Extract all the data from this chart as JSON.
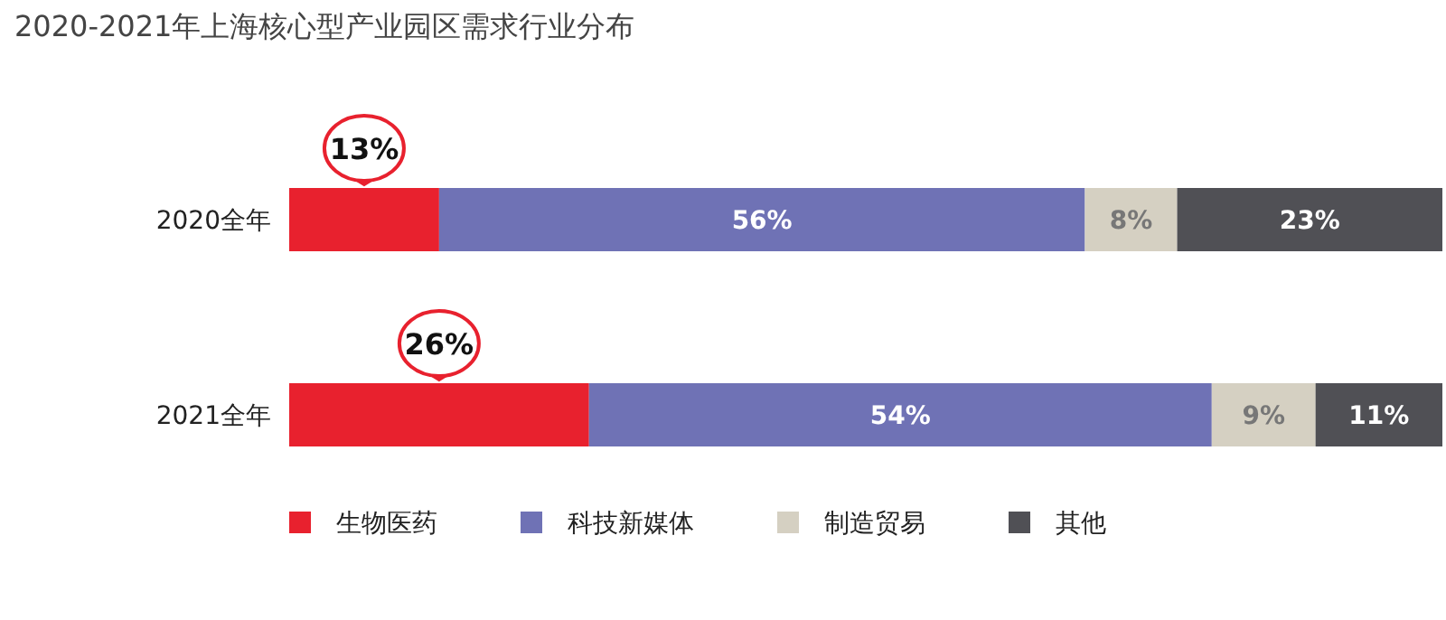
{
  "chart_data": {
    "type": "bar",
    "title": "2020-2021年上海核心型产业园区需求行业分布",
    "orientation": "horizontal",
    "stacked": true,
    "legend": "bottom",
    "categories": [
      "2020全年",
      "2021全年"
    ],
    "series": [
      {
        "name": "生物医药",
        "color": "#e8212e",
        "values": [
          13,
          26
        ],
        "value_labels": [
          "13%",
          "26%"
        ]
      },
      {
        "name": "科技新媒体",
        "color": "#6f72b5",
        "values": [
          56,
          54
        ],
        "value_labels": [
          "56%",
          "54%"
        ]
      },
      {
        "name": "制造贸易",
        "color": "#d5d0c2",
        "values": [
          8,
          9
        ],
        "value_labels": [
          "8%",
          "9%"
        ]
      },
      {
        "name": "其他",
        "color": "#505055",
        "values": [
          23,
          11
        ],
        "value_labels": [
          "23%",
          "11%"
        ]
      }
    ]
  }
}
